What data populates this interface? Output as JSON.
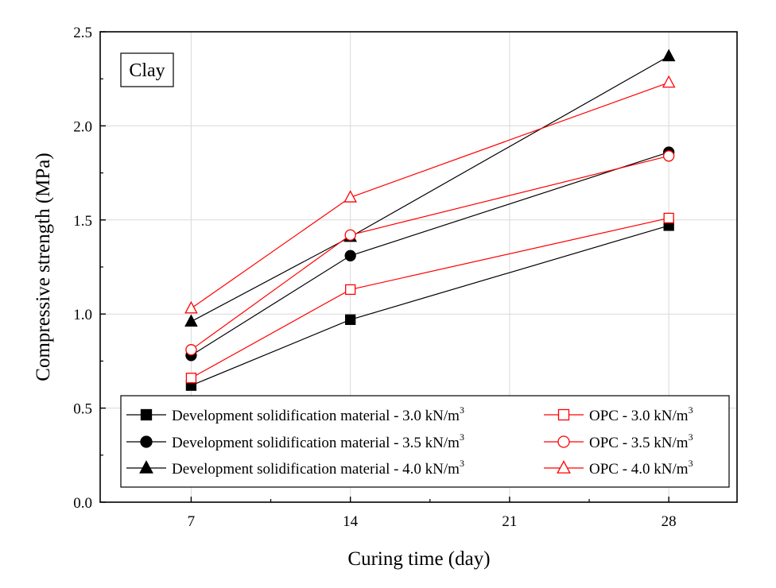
{
  "chart_data": {
    "type": "line",
    "title": "",
    "annotation": "Clay",
    "xlabel": "Curing time (day)",
    "ylabel": "Compressive strength (MPa)",
    "x": [
      7,
      14,
      28
    ],
    "xticks": [
      7,
      14,
      21,
      28
    ],
    "xticklabels": [
      "7",
      "14",
      "21",
      "28"
    ],
    "xlim": [
      3,
      31
    ],
    "ylim": [
      0,
      2.5
    ],
    "yticks": [
      0,
      0.5,
      1.0,
      1.5,
      2.0,
      2.5
    ],
    "yticklabels": [
      "0.0",
      "0.5",
      "1.0",
      "1.5",
      "2.0",
      "2.5"
    ],
    "grid": true,
    "legend_position": "bottom",
    "series": [
      {
        "name": "Development solidification material - 3.0 kN/m",
        "name_sup": "3",
        "values": [
          0.62,
          0.97,
          1.47
        ],
        "color": "#000000",
        "marker": "square",
        "filled": true
      },
      {
        "name": "Development solidification material - 3.5 kN/m",
        "name_sup": "3",
        "values": [
          0.78,
          1.31,
          1.86
        ],
        "color": "#000000",
        "marker": "circle",
        "filled": true
      },
      {
        "name": "Development solidification material - 4.0 kN/m",
        "name_sup": "3",
        "values": [
          0.96,
          1.41,
          2.37
        ],
        "color": "#000000",
        "marker": "triangle",
        "filled": true
      },
      {
        "name": "OPC - 3.0 kN/m",
        "name_sup": "3",
        "values": [
          0.66,
          1.13,
          1.51
        ],
        "color": "#ff0000",
        "marker": "square",
        "filled": false
      },
      {
        "name": "OPC - 3.5 kN/m",
        "name_sup": "3",
        "values": [
          0.81,
          1.42,
          1.84
        ],
        "color": "#ff0000",
        "marker": "circle",
        "filled": false
      },
      {
        "name": "OPC - 4.0 kN/m",
        "name_sup": "3",
        "values": [
          1.03,
          1.62,
          2.23
        ],
        "color": "#ff0000",
        "marker": "triangle",
        "filled": false
      }
    ]
  }
}
